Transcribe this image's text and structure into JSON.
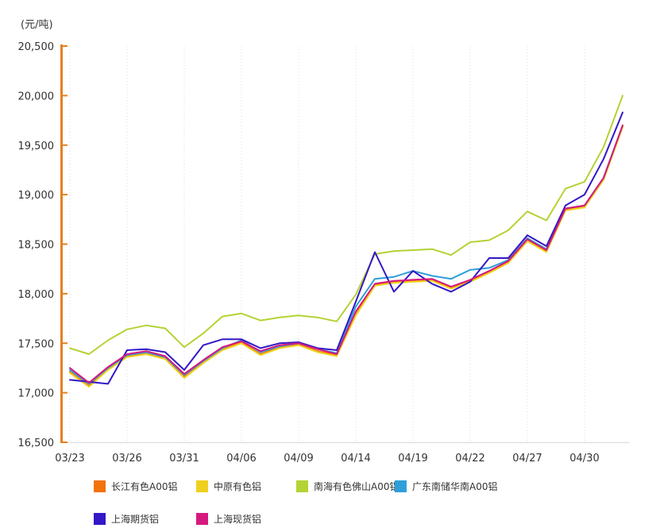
{
  "unit_label": "(元/吨)",
  "axis": {
    "y_min": 16500,
    "y_max": 20500,
    "y_interval": 500,
    "y_tick_labels": [
      "20,500",
      "20,000",
      "19,500",
      "19,000",
      "18,500",
      "18,000",
      "17,500",
      "17,000",
      "16,500"
    ],
    "x_shown_labels": [
      "03/23",
      "03/26",
      "03/31",
      "04/06",
      "04/09",
      "04/14",
      "04/19",
      "04/22",
      "04/27",
      "04/30"
    ],
    "axis_color": "#E2801E",
    "grid_color": "#DDDDDD",
    "x_axis_line_color": "#D9D9D9",
    "label_color": "#333333"
  },
  "chart_data": {
    "type": "line",
    "title": "",
    "ylabel": "元/吨",
    "ylim": [
      16500,
      20500
    ],
    "grid": "vertical-dotted",
    "legend_position": "bottom",
    "x": [
      "03/23",
      "03/24",
      "03/25",
      "03/26",
      "03/29",
      "03/30",
      "03/31",
      "04/01",
      "04/02",
      "04/06",
      "04/07",
      "04/08",
      "04/09",
      "04/12",
      "04/13",
      "04/14",
      "04/15",
      "04/16",
      "04/19",
      "04/20",
      "04/21",
      "04/22",
      "04/23",
      "04/26",
      "04/27",
      "04/28",
      "04/29",
      "04/30",
      "05/06",
      "05/07"
    ],
    "series": [
      {
        "name": "长江有色A00铝",
        "color": "#F2720C",
        "values": [
          17210,
          17070,
          17240,
          17370,
          17400,
          17350,
          17160,
          17310,
          17440,
          17510,
          17390,
          17460,
          17490,
          17420,
          17380,
          17790,
          18090,
          18120,
          18130,
          18140,
          18060,
          18130,
          18220,
          18320,
          18540,
          18430,
          18850,
          18880,
          19160,
          19690
        ]
      },
      {
        "name": "中原有色铝",
        "color": "#F0D01E",
        "values": [
          17200,
          17060,
          17230,
          17360,
          17390,
          17340,
          17150,
          17300,
          17430,
          17500,
          17380,
          17450,
          17480,
          17410,
          17370,
          17780,
          18080,
          18110,
          18120,
          18130,
          18050,
          18120,
          18210,
          18310,
          18530,
          18420,
          18840,
          18870,
          19150,
          19680
        ]
      },
      {
        "name": "南海有色佛山A00铝",
        "color": "#B3D334",
        "values": [
          17450,
          17390,
          17530,
          17640,
          17680,
          17650,
          17460,
          17600,
          17770,
          17800,
          17730,
          17760,
          17780,
          17760,
          17720,
          17990,
          18400,
          18430,
          18440,
          18450,
          18390,
          18520,
          18540,
          18640,
          18830,
          18740,
          19060,
          19130,
          19480,
          20000
        ]
      },
      {
        "name": "广东南储华南A00铝",
        "color": "#2E9FD9",
        "values": [
          17230,
          17090,
          17250,
          17380,
          17410,
          17360,
          17180,
          17320,
          17450,
          17530,
          17410,
          17470,
          17500,
          17440,
          17400,
          17870,
          18150,
          18170,
          18230,
          18180,
          18150,
          18240,
          18260,
          18340,
          18560,
          18450,
          18860,
          18890,
          19170,
          19700
        ]
      },
      {
        "name": "上海期货铝",
        "color": "#3318C6",
        "values": [
          17130,
          17110,
          17090,
          17430,
          17440,
          17410,
          17230,
          17480,
          17540,
          17540,
          17450,
          17500,
          17510,
          17450,
          17430,
          17920,
          18420,
          18020,
          18230,
          18100,
          18020,
          18120,
          18360,
          18360,
          18590,
          18480,
          18890,
          19000,
          19360,
          19830
        ]
      },
      {
        "name": "上海现货铝",
        "color": "#D6197F",
        "values": [
          17250,
          17100,
          17260,
          17390,
          17420,
          17370,
          17190,
          17330,
          17460,
          17520,
          17420,
          17480,
          17500,
          17440,
          17390,
          17820,
          18100,
          18130,
          18140,
          18150,
          18070,
          18140,
          18230,
          18330,
          18550,
          18440,
          18860,
          18890,
          19170,
          19700
        ]
      }
    ]
  },
  "legend": {
    "rows": [
      [
        "长江有色A00铝",
        "中原有色铝",
        "南海有色佛山A00铝",
        "广东南储华南A00铝"
      ],
      [
        "上海期货铝",
        "上海现货铝"
      ]
    ]
  }
}
